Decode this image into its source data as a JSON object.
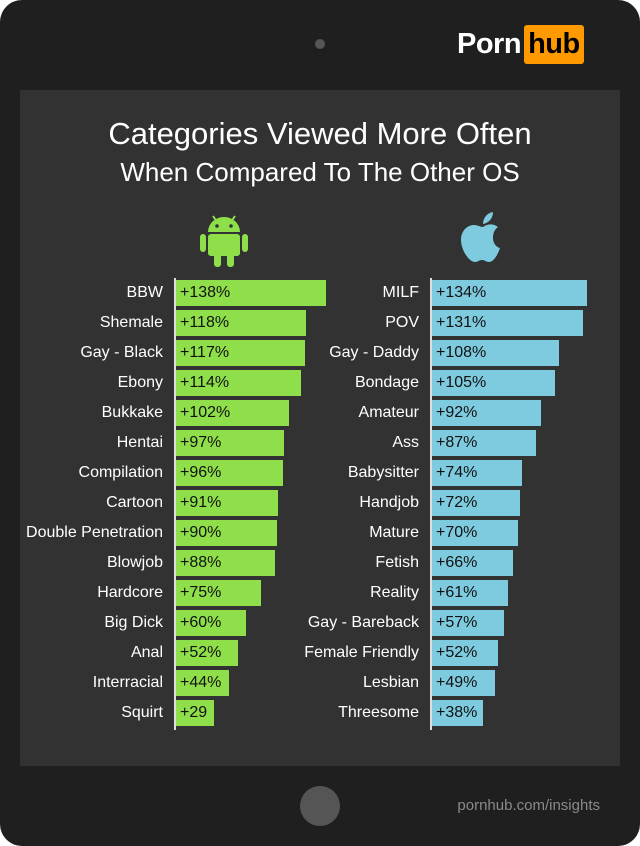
{
  "logo": {
    "part1": "Porn",
    "part2": "hub"
  },
  "footer_url": "pornhub.com/insights",
  "chart_data": [
    {
      "type": "bar",
      "orientation": "horizontal",
      "title": "Categories Viewed More Often",
      "subtitle": "When Compared To The Other OS",
      "series_icon": "android-icon",
      "color": "#8fdf4b",
      "categories": [
        "BBW",
        "Shemale",
        "Gay - Black",
        "Ebony",
        "Bukkake",
        "Hentai",
        "Compilation",
        "Cartoon",
        "Double Penetration",
        "Blowjob",
        "Hardcore",
        "Big Dick",
        "Anal",
        "Interracial",
        "Squirt"
      ],
      "values": [
        138,
        118,
        117,
        114,
        102,
        97,
        96,
        91,
        90,
        88,
        75,
        60,
        52,
        44,
        29
      ],
      "labels": [
        "+138%",
        "+118%",
        "+117%",
        "+114%",
        "+102%",
        "+97%",
        "+96%",
        "+91%",
        "+90%",
        "+88%",
        "+75%",
        "+60%",
        "+52%",
        "+44%",
        "+29"
      ]
    },
    {
      "type": "bar",
      "orientation": "horizontal",
      "series_icon": "apple-icon",
      "color": "#7ecbe0",
      "categories": [
        "MILF",
        "POV",
        "Gay - Daddy",
        "Bondage",
        "Amateur",
        "Ass",
        "Babysitter",
        "Handjob",
        "Mature",
        "Fetish",
        "Reality",
        "Gay - Bareback",
        "Female Friendly",
        "Lesbian",
        "Threesome"
      ],
      "values": [
        134,
        131,
        108,
        105,
        92,
        87,
        74,
        72,
        70,
        66,
        61,
        57,
        52,
        49,
        38
      ],
      "labels": [
        "+134%",
        "+131%",
        "+108%",
        "+105%",
        "+92%",
        "+87%",
        "+74%",
        "+72%",
        "+70%",
        "+66%",
        "+61%",
        "+57%",
        "+52%",
        "+49%",
        "+38%"
      ]
    }
  ]
}
